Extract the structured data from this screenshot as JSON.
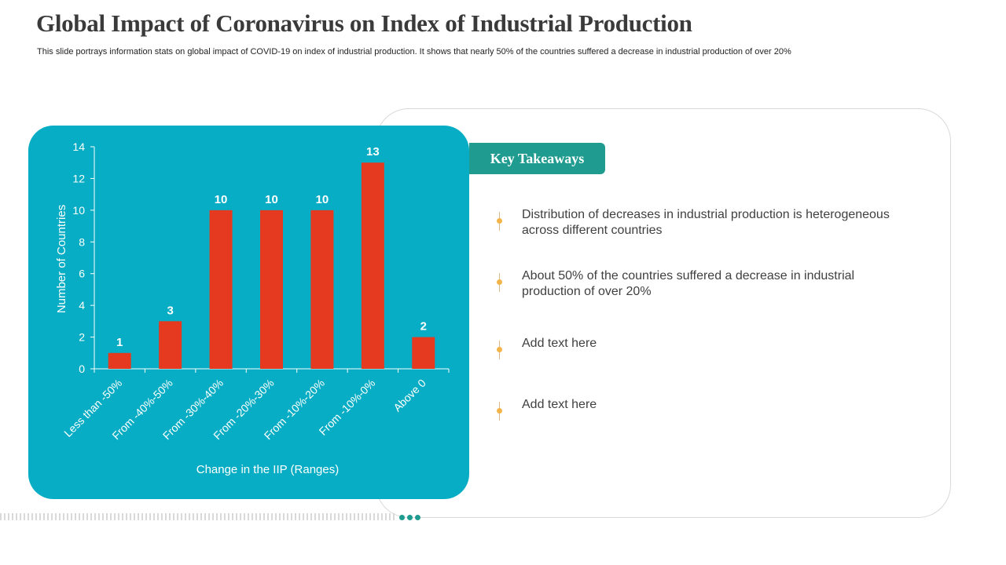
{
  "slide": {
    "title": "Global Impact of Coronavirus on Index of Industrial Production",
    "subtitle": "This slide portrays information stats on global impact of COVID-19  on index of industrial production. It shows that nearly 50% of the countries suffered a decrease in industrial production of over 20%"
  },
  "key_takeaways": {
    "heading": "Key Takeaways",
    "items": [
      "Distribution of decreases in industrial production is heterogeneous across different countries",
      "About 50% of the countries suffered a decrease in industrial production of over 20%",
      "Add text here",
      "Add text here"
    ]
  },
  "colors": {
    "panel": "#06adc4",
    "bar": "#e63a20",
    "accent": "#1f9c8f",
    "bullet": "#f3b44a"
  },
  "chart_data": {
    "type": "bar",
    "categories": [
      "Less than -50%",
      "From -40%-50%",
      "From -30%-40%",
      "From -20%-30%",
      "From -10%-20%",
      "From -10%-0%",
      "Above 0"
    ],
    "values": [
      1,
      3,
      10,
      10,
      10,
      13,
      2
    ],
    "title": "",
    "xlabel": "Change in the IIP (Ranges)",
    "ylabel": "Number of Countries",
    "ylim": [
      0,
      14
    ],
    "yticks": [
      0,
      2,
      4,
      6,
      8,
      10,
      12,
      14
    ],
    "data_labels": true,
    "legend": "none"
  }
}
